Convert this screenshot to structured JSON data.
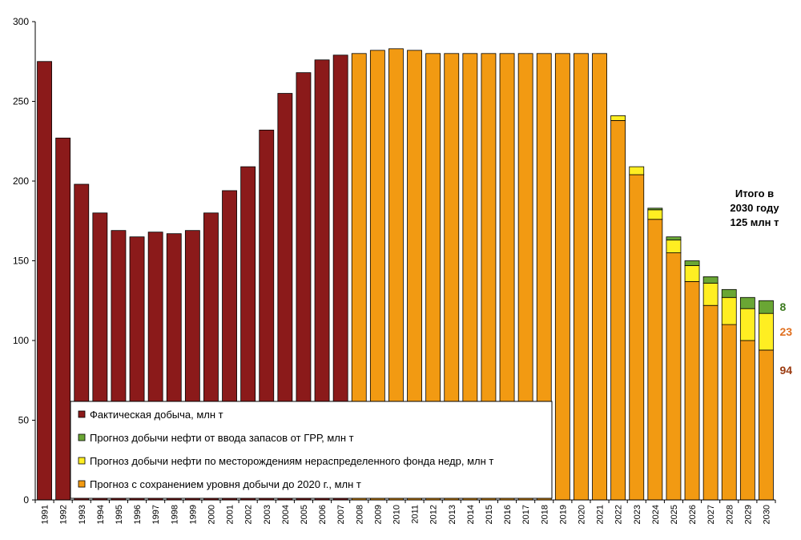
{
  "chart_data": {
    "type": "bar",
    "stacked": true,
    "title": "",
    "xlabel": "",
    "ylabel": "",
    "ylim": [
      0,
      300
    ],
    "yticks": [
      0,
      50,
      100,
      150,
      200,
      250,
      300
    ],
    "grid": false,
    "legend_position": "bottom-left",
    "categories": [
      "1991",
      "1992",
      "1993",
      "1994",
      "1995",
      "1996",
      "1997",
      "1998",
      "1999",
      "2000",
      "2001",
      "2002",
      "2003",
      "2004",
      "2005",
      "2006",
      "2007",
      "2008",
      "2009",
      "2010",
      "2011",
      "2012",
      "2013",
      "2014",
      "2015",
      "2016",
      "2017",
      "2018",
      "2019",
      "2020",
      "2021",
      "2022",
      "2023",
      "2024",
      "2025",
      "2026",
      "2027",
      "2028",
      "2029",
      "2030"
    ],
    "series": [
      {
        "key": "actual",
        "name": "Фактическая добыча, млн т",
        "color": "#8B1A1A",
        "values": [
          275,
          227,
          198,
          180,
          169,
          165,
          168,
          167,
          169,
          180,
          194,
          209,
          232,
          255,
          268,
          276,
          279,
          0,
          0,
          0,
          0,
          0,
          0,
          0,
          0,
          0,
          0,
          0,
          0,
          0,
          0,
          0,
          0,
          0,
          0,
          0,
          0,
          0,
          0,
          0
        ]
      },
      {
        "key": "base",
        "name": "Прогноз с сохранением  уровня добычи до 2020 г., млн т",
        "color": "#F29A12",
        "values": [
          0,
          0,
          0,
          0,
          0,
          0,
          0,
          0,
          0,
          0,
          0,
          0,
          0,
          0,
          0,
          0,
          0,
          280,
          282,
          283,
          282,
          280,
          280,
          280,
          280,
          280,
          280,
          280,
          280,
          280,
          280,
          238,
          204,
          176,
          155,
          137,
          122,
          110,
          100,
          94
        ]
      },
      {
        "key": "undistributed",
        "name": "Прогноз добычи нефти по месторождениям нераспределенного фонда недр, млн т",
        "color": "#FFEE22",
        "values": [
          0,
          0,
          0,
          0,
          0,
          0,
          0,
          0,
          0,
          0,
          0,
          0,
          0,
          0,
          0,
          0,
          0,
          0,
          0,
          0,
          0,
          0,
          0,
          0,
          0,
          0,
          0,
          0,
          0,
          0,
          0,
          3,
          5,
          6,
          8,
          10,
          14,
          17,
          20,
          23
        ]
      },
      {
        "key": "grr",
        "name": "Прогноз добычи нефти от ввода запасов от ГРР, млн т",
        "color": "#6AA634",
        "values": [
          0,
          0,
          0,
          0,
          0,
          0,
          0,
          0,
          0,
          0,
          0,
          0,
          0,
          0,
          0,
          0,
          0,
          0,
          0,
          0,
          0,
          0,
          0,
          0,
          0,
          0,
          0,
          0,
          0,
          0,
          0,
          0,
          0,
          1,
          2,
          3,
          4,
          5,
          7,
          8
        ]
      }
    ],
    "legend_order": [
      "actual",
      "grr",
      "undistributed",
      "base"
    ],
    "note_lines": [
      "Итого в",
      "2030 году",
      "125 млн т"
    ],
    "end_labels": [
      {
        "text": "8",
        "series": "grr",
        "color": "#3C7A1E"
      },
      {
        "text": "23",
        "series": "undistributed",
        "color": "#E07020"
      },
      {
        "text": "94",
        "series": "base",
        "color": "#9A3A10"
      }
    ]
  }
}
